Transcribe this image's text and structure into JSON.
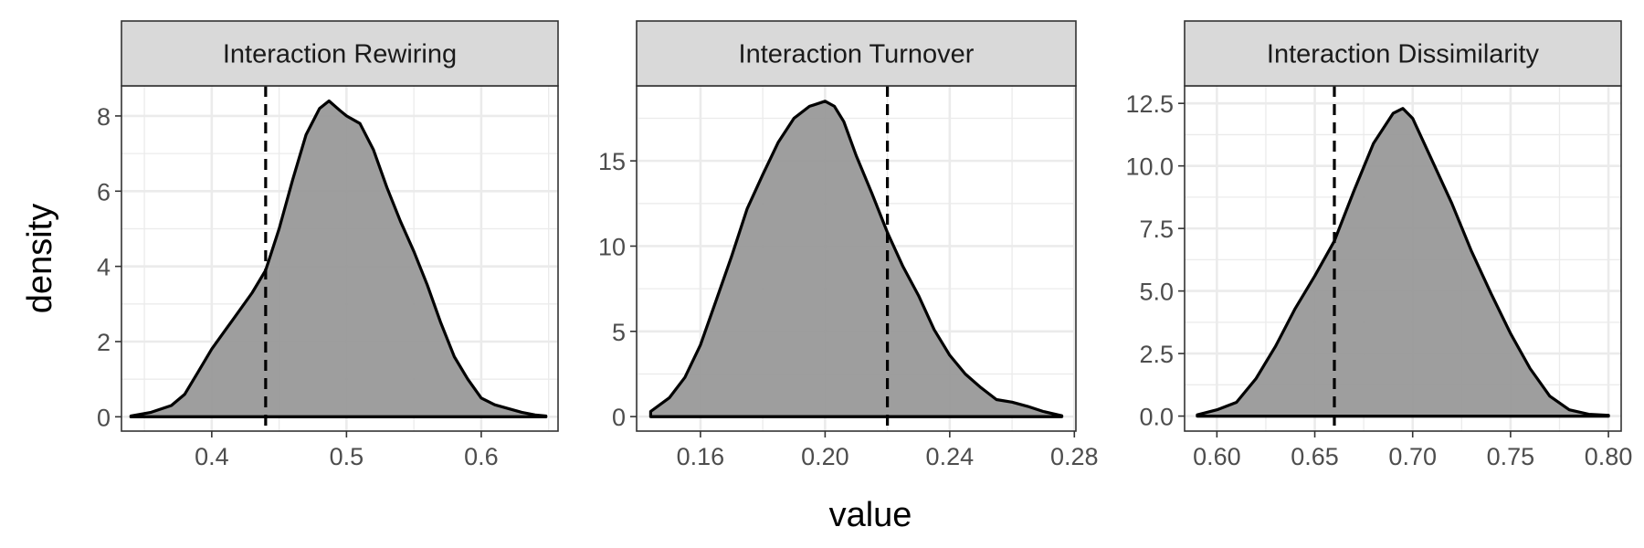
{
  "chart_data": {
    "type": "area",
    "xlabel": "value",
    "ylabel": "density",
    "grid": true,
    "colors": {
      "fill": "#999999",
      "line": "#000000",
      "strip": "#d9d9d9",
      "grid": "#ebebeb",
      "tick_text": "#4d4d4d"
    },
    "panels": [
      {
        "title": "Interaction Rewiring",
        "xlim": [
          0.333,
          0.657
        ],
        "ylim": [
          -0.38,
          8.8
        ],
        "xticks": [
          0.4,
          0.5,
          0.6
        ],
        "xtick_labels": [
          "0.4",
          "0.5",
          "0.6"
        ],
        "yticks": [
          0,
          2,
          4,
          6,
          8
        ],
        "ytick_labels": [
          "0",
          "2",
          "4",
          "6",
          "8"
        ],
        "ref_line": 0.44,
        "x": [
          0.34,
          0.355,
          0.37,
          0.38,
          0.39,
          0.4,
          0.41,
          0.42,
          0.43,
          0.44,
          0.45,
          0.46,
          0.47,
          0.48,
          0.487,
          0.495,
          0.5,
          0.51,
          0.52,
          0.53,
          0.54,
          0.55,
          0.56,
          0.57,
          0.58,
          0.59,
          0.6,
          0.61,
          0.62,
          0.63,
          0.64,
          0.648
        ],
        "y": [
          0.02,
          0.12,
          0.3,
          0.6,
          1.2,
          1.8,
          2.3,
          2.8,
          3.3,
          3.9,
          5.0,
          6.3,
          7.5,
          8.2,
          8.4,
          8.15,
          8.0,
          7.8,
          7.1,
          6.1,
          5.2,
          4.4,
          3.5,
          2.5,
          1.6,
          1.0,
          0.5,
          0.32,
          0.22,
          0.12,
          0.05,
          0.02
        ]
      },
      {
        "title": "Interaction Turnover",
        "xlim": [
          0.1395,
          0.2805
        ],
        "ylim": [
          -0.85,
          19.4
        ],
        "xticks": [
          0.16,
          0.2,
          0.24,
          0.28
        ],
        "xtick_labels": [
          "0.16",
          "0.20",
          "0.24",
          "0.28"
        ],
        "yticks": [
          0,
          5,
          10,
          15
        ],
        "ytick_labels": [
          "0",
          "5",
          "10",
          "15"
        ],
        "ref_line": 0.22,
        "x": [
          0.144,
          0.15,
          0.155,
          0.16,
          0.165,
          0.17,
          0.175,
          0.18,
          0.185,
          0.19,
          0.195,
          0.2,
          0.203,
          0.206,
          0.21,
          0.215,
          0.22,
          0.225,
          0.23,
          0.235,
          0.24,
          0.245,
          0.25,
          0.255,
          0.26,
          0.265,
          0.27,
          0.276
        ],
        "y": [
          0.3,
          1.1,
          2.3,
          4.2,
          6.8,
          9.4,
          12.2,
          14.2,
          16.1,
          17.5,
          18.2,
          18.5,
          18.2,
          17.3,
          15.3,
          13.1,
          10.8,
          8.8,
          7.1,
          5.1,
          3.6,
          2.5,
          1.7,
          1.0,
          0.85,
          0.6,
          0.3,
          0.05
        ]
      },
      {
        "title": "Interaction Dissimilarity",
        "xlim": [
          0.5835,
          0.8065
        ],
        "ylim": [
          -0.6,
          13.2
        ],
        "xticks": [
          0.6,
          0.65,
          0.7,
          0.75,
          0.8
        ],
        "xtick_labels": [
          "0.60",
          "0.65",
          "0.70",
          "0.75",
          "0.80"
        ],
        "yticks": [
          0.0,
          2.5,
          5.0,
          7.5,
          10.0,
          12.5
        ],
        "ytick_labels": [
          "0.0",
          "2.5",
          "5.0",
          "7.5",
          "10.0",
          "12.5"
        ],
        "ref_line": 0.66,
        "x": [
          0.59,
          0.6,
          0.61,
          0.62,
          0.63,
          0.64,
          0.65,
          0.66,
          0.67,
          0.68,
          0.69,
          0.695,
          0.7,
          0.71,
          0.72,
          0.73,
          0.74,
          0.75,
          0.76,
          0.77,
          0.78,
          0.79,
          0.8
        ],
        "y": [
          0.05,
          0.25,
          0.55,
          1.5,
          2.8,
          4.3,
          5.6,
          7.0,
          9.0,
          10.9,
          12.1,
          12.3,
          11.9,
          10.2,
          8.5,
          6.6,
          4.9,
          3.3,
          1.9,
          0.8,
          0.25,
          0.07,
          0.03
        ]
      }
    ]
  }
}
